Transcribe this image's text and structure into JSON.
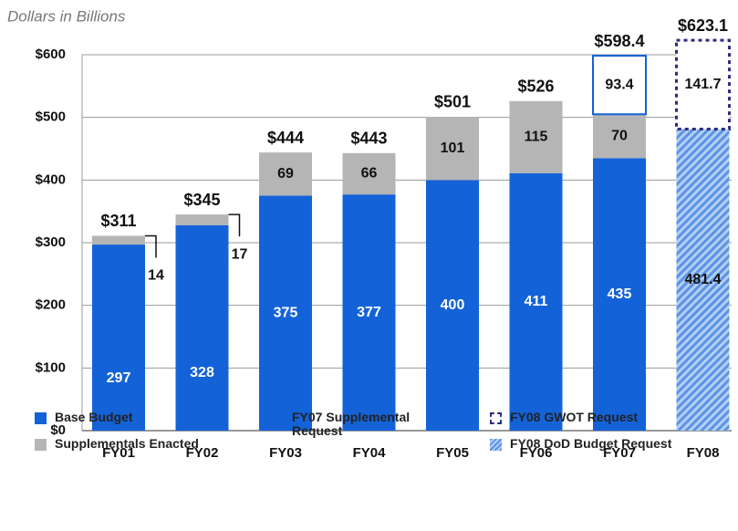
{
  "chart_data": {
    "type": "stacked-bar",
    "subtitle": "Dollars in Billions",
    "categories": [
      "FY01",
      "FY02",
      "FY03",
      "FY04",
      "FY05",
      "FY06",
      "FY07",
      "FY08"
    ],
    "series": [
      {
        "name": "Base Budget",
        "color": "#1462d8",
        "style": "solid",
        "label_color": "#ffffff",
        "values": [
          297,
          328,
          375,
          377,
          400,
          411,
          435,
          null
        ]
      },
      {
        "name": "Supplementals Enacted",
        "color": "#b5b5b5",
        "style": "solid",
        "label_color": "#111111",
        "values": [
          14,
          17,
          69,
          66,
          101,
          115,
          70,
          null
        ]
      },
      {
        "name": "FY07 Supplemental Request",
        "color": "#1462d8",
        "style": "outline",
        "label_color": "#111111",
        "values": [
          null,
          null,
          null,
          null,
          null,
          null,
          93.4,
          null
        ]
      },
      {
        "name": "FY08 DoD Budget Request",
        "color": "#5b93e6",
        "style": "hatch",
        "label_color": "#111111",
        "values": [
          null,
          null,
          null,
          null,
          null,
          null,
          null,
          481.4
        ]
      },
      {
        "name": "FY08 GWOT Request",
        "color": "#2d2d82",
        "style": "dashed-outline",
        "label_color": "#111111",
        "values": [
          null,
          null,
          null,
          null,
          null,
          null,
          null,
          141.7
        ]
      }
    ],
    "totals": [
      311,
      345,
      444,
      443,
      501,
      526,
      598.4,
      623.1
    ],
    "total_labels": [
      "$311",
      "$345",
      "$444",
      "$443",
      "$501",
      "$526",
      "$598.4",
      "$623.1"
    ],
    "ylim": [
      0,
      600
    ],
    "yticks": [
      {
        "value": 0,
        "label": "$0"
      },
      {
        "value": 100,
        "label": "$100"
      },
      {
        "value": 200,
        "label": "$200"
      },
      {
        "value": 300,
        "label": "$300"
      },
      {
        "value": 400,
        "label": "$400"
      },
      {
        "value": 500,
        "label": "$500"
      },
      {
        "value": 600,
        "label": "$600"
      }
    ],
    "grid": true
  }
}
